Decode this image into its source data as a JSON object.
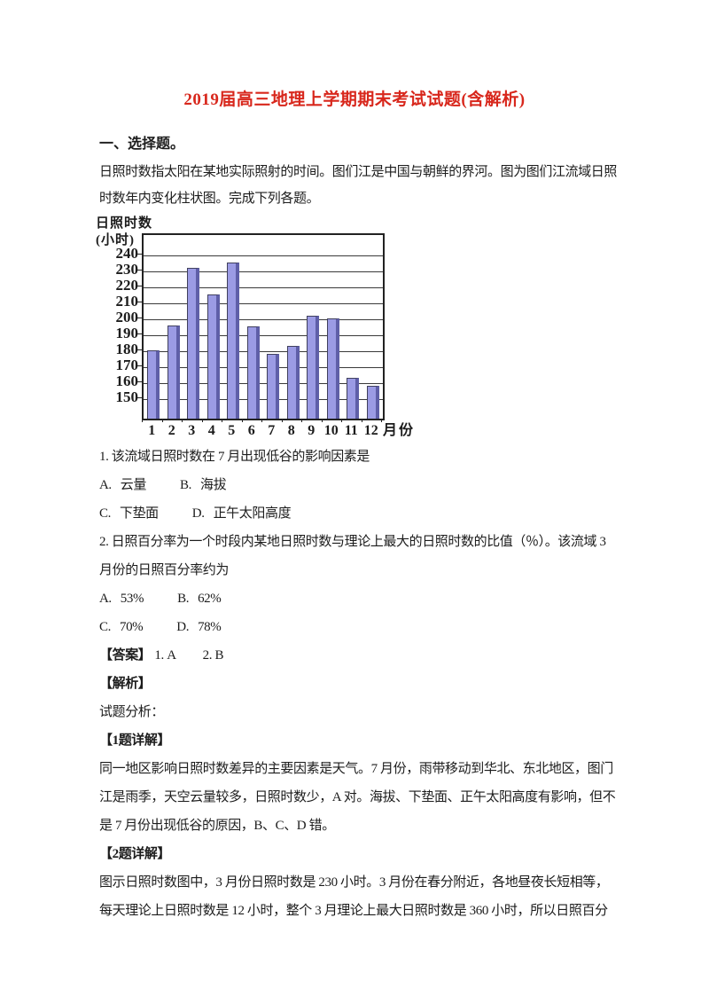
{
  "document": {
    "title": "2019届高三地理上学期期末考试试题(含解析)",
    "title_color": "#d8271c",
    "section_heading": "一、选择题。",
    "intro_lines": [
      "日照时数指太阳在某地实际照射的时间。图们江是中国与朝鲜的界河。图为图们江流域日照",
      "时数年内变化柱状图。完成下列各题。"
    ],
    "questions": {
      "q1": {
        "stem": "1.  该流域日照时数在 7 月出现低谷的影响因素是",
        "row1": [
          {
            "label": "A.",
            "text": "云量"
          },
          {
            "label": "B.",
            "text": "海拔"
          }
        ],
        "row2": [
          {
            "label": "C.",
            "text": "下垫面"
          },
          {
            "label": "D.",
            "text": "正午太阳高度"
          }
        ]
      },
      "q2": {
        "stem_line1": "2.  日照百分率为一个时段内某地日照时数与理论上最大的日照时数的比值（％）。该流域 3",
        "stem_line2": "月份的日照百分率约为",
        "row1": [
          {
            "label": "A.",
            "text": "53%"
          },
          {
            "label": "B.",
            "text": "62%"
          }
        ],
        "row2": [
          {
            "label": "C.",
            "text": "70%"
          },
          {
            "label": "D.",
            "text": "78%"
          }
        ]
      }
    },
    "answer": {
      "label": "【答案】",
      "item1": "1. A",
      "item2": "2. B"
    },
    "analysis": {
      "label": "【解析】",
      "intro": "试题分析：",
      "detail1_heading": "【1题详解】",
      "detail1_lines": [
        "同一地区影响日照时数差异的主要因素是天气。7 月份，雨带移动到华北、东北地区，图门",
        "江是雨季，天空云量较多，日照时数少，A 对。海拔、下垫面、正午太阳高度有影响，但不",
        "是 7 月份出现低谷的原因，B、C、D 错。"
      ],
      "detail2_heading": "【2题详解】",
      "detail2_lines": [
        "图示日照时数图中，3 月份日照时数是 230 小时。3 月份在春分附近，各地昼夜长短相等，",
        "每天理论上日照时数是 12 小时，整个 3 月理论上最大日照时数是 360 小时，所以日照百分"
      ]
    }
  },
  "chart_data": {
    "type": "bar",
    "title": "",
    "ylabel": "日照时数(小时)",
    "ylabel_line1": "日照时数",
    "ylabel_line2": "(小时)",
    "xlabel": "月份",
    "categories": [
      "1",
      "2",
      "3",
      "4",
      "5",
      "6",
      "7",
      "8",
      "9",
      "10",
      "11",
      "12"
    ],
    "values": [
      180,
      196,
      232,
      215,
      235,
      195,
      178,
      183,
      202,
      200,
      163,
      158
    ],
    "yticks": [
      150,
      160,
      170,
      180,
      190,
      200,
      210,
      220,
      230,
      240
    ],
    "ylim": [
      138,
      253
    ],
    "grid": true,
    "legend": "none",
    "bar_color": "#9b9be4",
    "bar_edge_color": "#5f5fa8",
    "bar_outline_color": "#40405c",
    "grid_color": "#3a3a3a",
    "axis_color": "#222222"
  }
}
